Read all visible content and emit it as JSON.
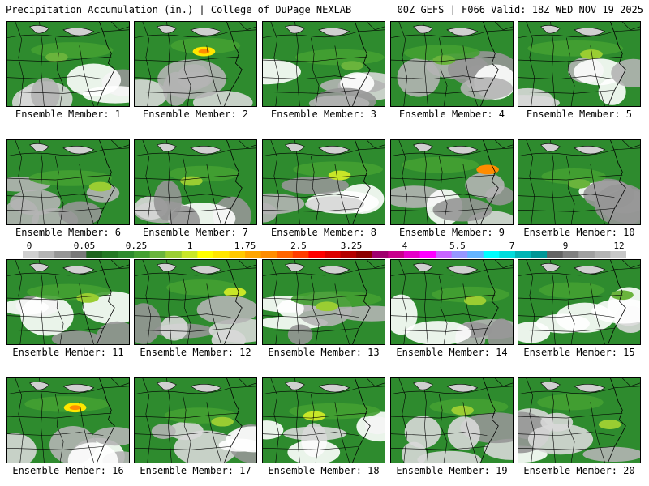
{
  "header": {
    "left_title": "Precipitation Accumulation (in.) | College of DuPage NEXLAB",
    "right_title": "00Z GEFS | F066 Valid: 18Z WED NOV 19 2025"
  },
  "panels": [
    {
      "label": "Ensemble Member: 1",
      "max_in": 0.5
    },
    {
      "label": "Ensemble Member: 2",
      "max_in": 1.25
    },
    {
      "label": "Ensemble Member: 3",
      "max_in": 0.5
    },
    {
      "label": "Ensemble Member: 4",
      "max_in": 0.25
    },
    {
      "label": "Ensemble Member: 5",
      "max_in": 0.75
    },
    {
      "label": "Ensemble Member: 6",
      "max_in": 0.75
    },
    {
      "label": "Ensemble Member: 7",
      "max_in": 0.75
    },
    {
      "label": "Ensemble Member: 8",
      "max_in": 1.0
    },
    {
      "label": "Ensemble Member: 9",
      "max_in": 2.0
    },
    {
      "label": "Ensemble Member: 10",
      "max_in": 0.5
    },
    {
      "label": "Ensemble Member: 11",
      "max_in": 0.75
    },
    {
      "label": "Ensemble Member: 12",
      "max_in": 1.0
    },
    {
      "label": "Ensemble Member: 13",
      "max_in": 0.75
    },
    {
      "label": "Ensemble Member: 14",
      "max_in": 0.75
    },
    {
      "label": "Ensemble Member: 15",
      "max_in": 0.25
    },
    {
      "label": "Ensemble Member: 16",
      "max_in": 1.25
    },
    {
      "label": "Ensemble Member: 17",
      "max_in": 0.75
    },
    {
      "label": "Ensemble Member: 18",
      "max_in": 1.0
    },
    {
      "label": "Ensemble Member: 19",
      "max_in": 0.75
    },
    {
      "label": "Ensemble Member: 20",
      "max_in": 0.75
    }
  ],
  "colorbar": {
    "labels": [
      "0",
      "0.05",
      "0.25",
      "1",
      "1.75",
      "2.5",
      "3.25",
      "4",
      "5.5",
      "7",
      "9",
      "12"
    ],
    "colors": [
      "#d0d0d0",
      "#b4b4b4",
      "#969696",
      "#787878",
      "#1e641e",
      "#237823",
      "#2e8b2e",
      "#44a032",
      "#6ab43c",
      "#9acd32",
      "#c8e628",
      "#ffff00",
      "#ffe600",
      "#ffc800",
      "#ffa500",
      "#ff8c00",
      "#ff6400",
      "#ff3c00",
      "#ff0000",
      "#dc0000",
      "#b40000",
      "#8c0000",
      "#a0006e",
      "#c8008c",
      "#e600c8",
      "#ff00ff",
      "#c864ff",
      "#9696ff",
      "#64b4ff",
      "#00ffff",
      "#00dcdc",
      "#00b4b4",
      "#009696",
      "#646464",
      "#808080",
      "#a0a0a0",
      "#b4b4b4",
      "#c8c8c8"
    ]
  }
}
